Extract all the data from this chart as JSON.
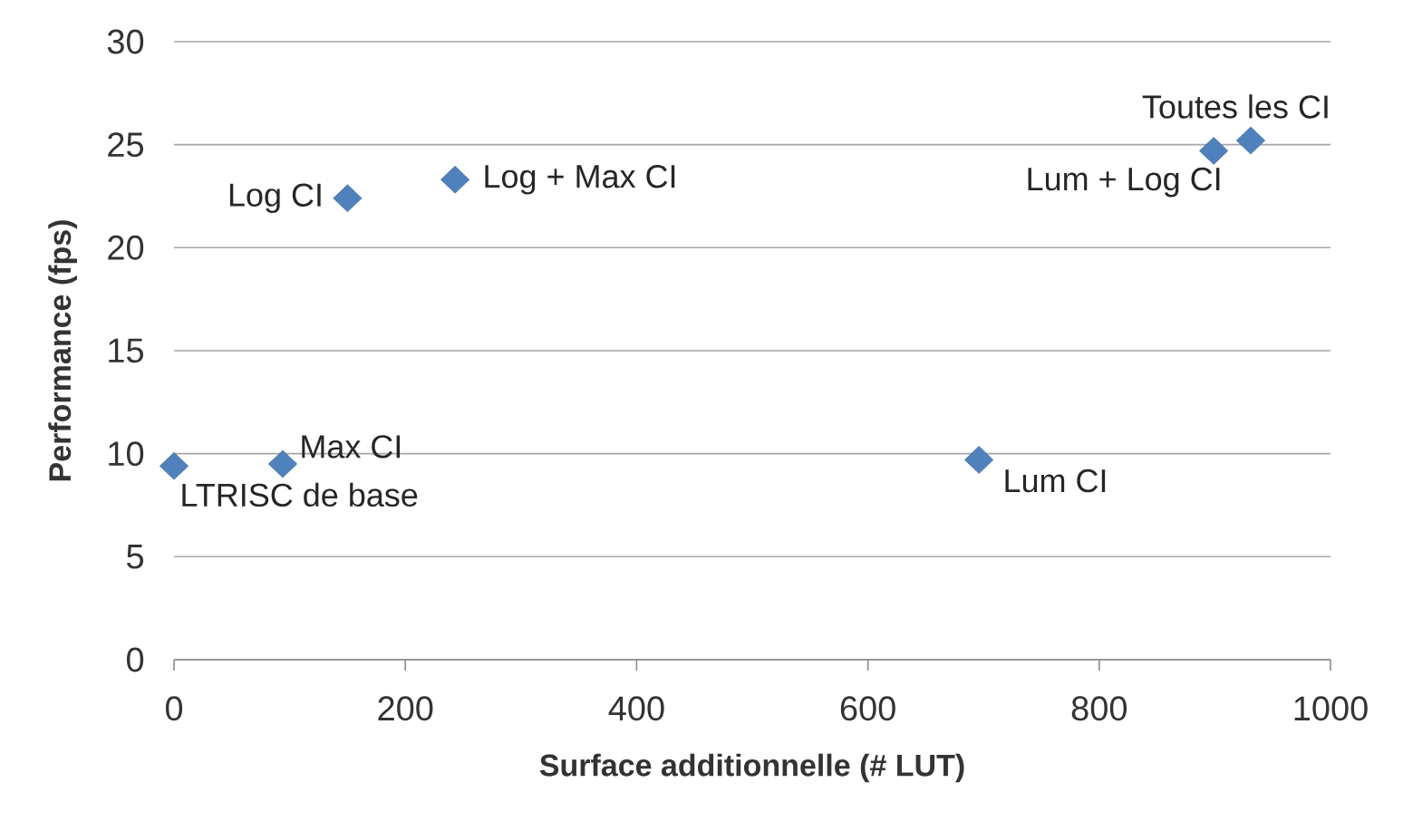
{
  "chart_data": {
    "type": "scatter",
    "xlabel": "Surface additionnelle (# LUT)",
    "ylabel": "Performance (fps)",
    "x": [
      0,
      94,
      150,
      243,
      696,
      899,
      931
    ],
    "series": [
      {
        "color": "#4f81bd",
        "values": [
          9.4,
          9.5,
          22.4,
          23.3,
          9.7,
          24.7,
          25.2
        ]
      }
    ],
    "annotations": [
      {
        "text": "LTRISC de base",
        "x": 0,
        "y": 9.4
      },
      {
        "text": "Max CI",
        "x": 94,
        "y": 9.5
      },
      {
        "text": "Log CI",
        "x": 150,
        "y": 22.4
      },
      {
        "text": "Log + Max CI",
        "x": 243,
        "y": 23.3
      },
      {
        "text": "Lum CI",
        "x": 696,
        "y": 9.7
      },
      {
        "text": "Lum + Log CI",
        "x": 899,
        "y": 24.7
      },
      {
        "text": "Toutes les CI",
        "x": 931,
        "y": 25.2
      }
    ],
    "xlim": [
      0,
      1000
    ],
    "ylim": [
      0,
      30
    ],
    "xticks": [
      0,
      200,
      400,
      600,
      800,
      1000
    ],
    "yticks": [
      0,
      5,
      10,
      15,
      20,
      25,
      30
    ],
    "grid": "y",
    "marker": "diamond"
  }
}
